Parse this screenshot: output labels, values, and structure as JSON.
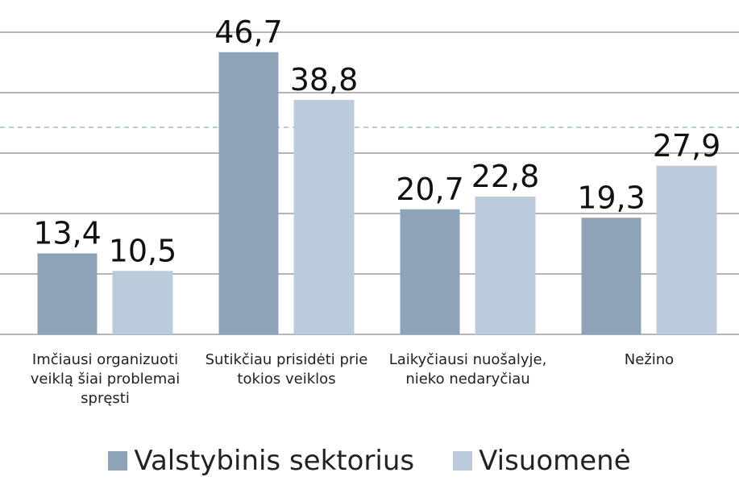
{
  "chart_data": {
    "type": "bar",
    "categories": [
      "Imčiausi organizuoti veiklą šiai problemai spręsti",
      "Sutikčiau prisidėti prie tokios veiklos",
      "Laikyčiausi nuošalyje, nieko nedaryčiau",
      "Nežino"
    ],
    "series": [
      {
        "name": "Valstybinis sektorius",
        "color": "#8ea3b8",
        "values": [
          13.4,
          46.7,
          20.7,
          19.3
        ],
        "value_labels": [
          "13,4",
          "46,7",
          "20,7",
          "19,3"
        ]
      },
      {
        "name": "Visuomenė",
        "color": "#bccbdb",
        "values": [
          10.5,
          38.8,
          22.8,
          27.9
        ],
        "value_labels": [
          "10,5",
          "38,8",
          "22,8",
          "27,9"
        ]
      }
    ],
    "ylim": [
      0,
      50
    ],
    "yticks": [
      0,
      10,
      20,
      30,
      40,
      50
    ],
    "grid": true
  }
}
